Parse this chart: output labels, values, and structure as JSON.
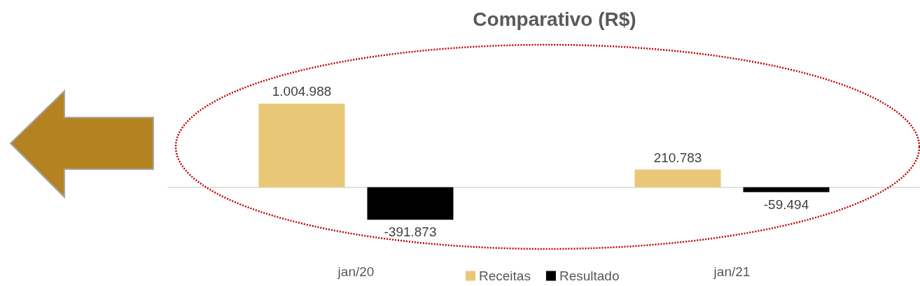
{
  "chart_data": {
    "type": "bar",
    "title": "Comparativo (R$)",
    "categories": [
      "jan/20",
      "jan/21"
    ],
    "series": [
      {
        "name": "Receitas",
        "color": "#e8c776",
        "values": [
          1004988,
          210783
        ],
        "value_labels": [
          "1.004.988",
          "210.783"
        ]
      },
      {
        "name": "Resultado",
        "color": "#000000",
        "values": [
          -391873,
          -59494
        ],
        "value_labels": [
          "-391.873",
          "-59.494"
        ]
      }
    ],
    "tick_labels": "x",
    "legend": "bottom"
  }
}
